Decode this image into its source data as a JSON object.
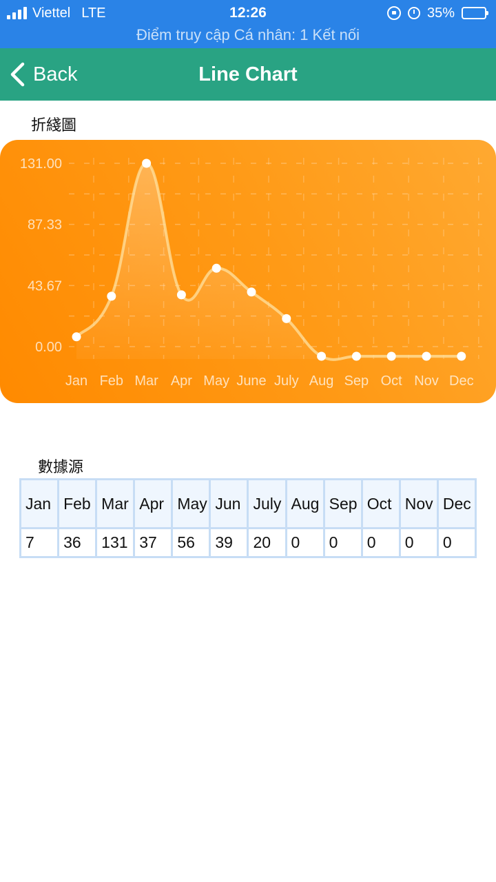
{
  "status_bar": {
    "carrier": "Viettel",
    "network": "LTE",
    "time": "12:26",
    "battery": "35%",
    "battery_level": 0.35,
    "hotspot": "Điểm truy cập Cá nhân: 1 Kết nối",
    "color": "#2A83E7"
  },
  "nav": {
    "back_label": "Back",
    "title": "Line Chart",
    "color": "#29A383"
  },
  "chart_section_label": "折綫圖",
  "table_section_label": "數據源",
  "chart_data": {
    "type": "line",
    "categories": [
      "Jan",
      "Feb",
      "Mar",
      "Apr",
      "May",
      "June",
      "July",
      "Aug",
      "Sep",
      "Oct",
      "Nov",
      "Dec"
    ],
    "values": [
      7,
      36,
      131,
      37,
      56,
      39,
      20,
      0,
      0,
      0,
      0,
      0
    ],
    "yticks": [
      "0.00",
      "43.67",
      "87.33",
      "131.00"
    ],
    "ylim": [
      0,
      131
    ],
    "grid": true,
    "smooth": true
  },
  "table": {
    "headers": [
      "Jan",
      "Feb",
      "Mar",
      "Apr",
      "May",
      "Jun",
      "July",
      "Aug",
      "Sep",
      "Oct",
      "Nov",
      "Dec"
    ],
    "values": [
      "7",
      "36",
      "131",
      "37",
      "56",
      "39",
      "20",
      "0",
      "0",
      "0",
      "0",
      "0"
    ]
  }
}
